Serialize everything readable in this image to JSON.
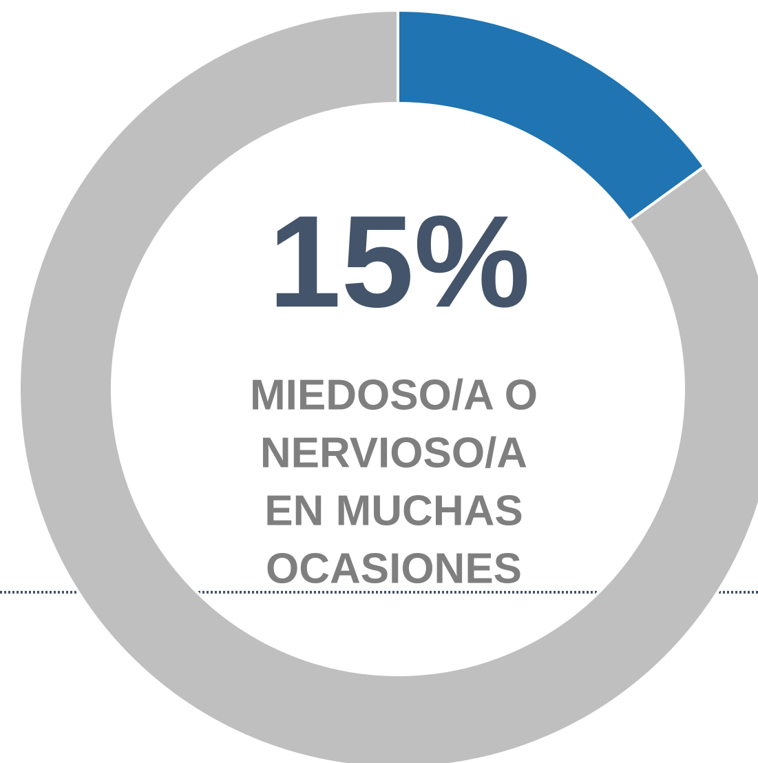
{
  "chart_data": {
    "type": "donut",
    "values": [
      15,
      85
    ],
    "value_labels": [
      "15%",
      null
    ],
    "colors": [
      "#1f74b1",
      "#bfbfbf"
    ],
    "label_lines": [
      "MIEDOSO/A O",
      "NERVIOSO/A",
      "EN MUCHAS",
      "OCASIONES"
    ]
  }
}
